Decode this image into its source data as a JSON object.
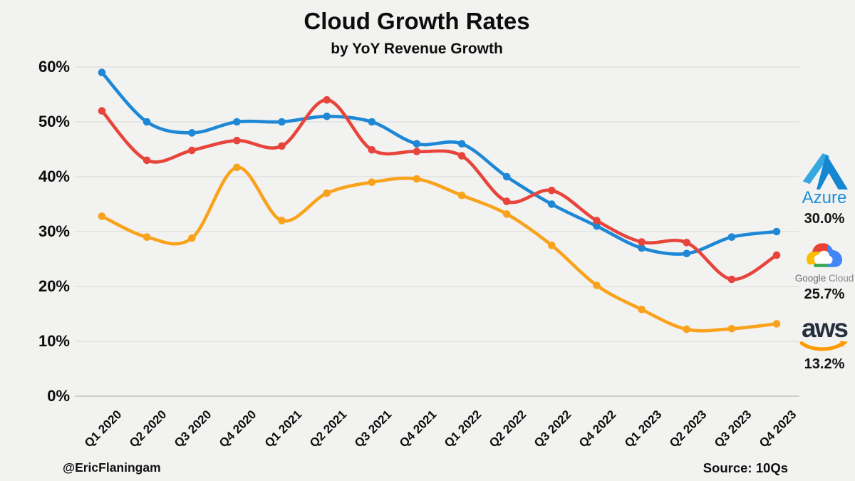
{
  "title": "Cloud Growth Rates",
  "subtitle": "by YoY Revenue Growth",
  "footer": {
    "watermark": "@EricFlaningam",
    "source": "Source: 10Qs"
  },
  "chart_data": {
    "type": "line",
    "title": "Cloud Growth Rates",
    "subtitle": "by YoY Revenue Growth",
    "categories": [
      "Q1 2020",
      "Q2 2020",
      "Q3 2020",
      "Q4 2020",
      "Q1 2021",
      "Q2 2021",
      "Q3 2021",
      "Q4 2021",
      "Q1 2022",
      "Q2 2022",
      "Q3 2022",
      "Q4 2022",
      "Q1 2023",
      "Q2 2023",
      "Q3 2023",
      "Q4 2023"
    ],
    "series": [
      {
        "name": "Azure",
        "color": "#1e88d6",
        "values": [
          59,
          50,
          48,
          50,
          50,
          51,
          50,
          46,
          46,
          40,
          35,
          31,
          27,
          26,
          29,
          30
        ]
      },
      {
        "name": "Google Cloud",
        "color": "#e7453c",
        "values": [
          52,
          43,
          44.8,
          46.6,
          45.6,
          54,
          44.9,
          44.6,
          43.8,
          35.5,
          37.5,
          32,
          28.1,
          28,
          21.3,
          25.7
        ]
      },
      {
        "name": "AWS",
        "color": "#f9a21b",
        "values": [
          32.8,
          29,
          28.8,
          41.7,
          32,
          37,
          39,
          39.6,
          36.6,
          33.2,
          27.5,
          20.2,
          15.8,
          12.2,
          12.3,
          13.2
        ]
      }
    ],
    "ylim": [
      0,
      60
    ],
    "yticks": [
      {
        "value": 60,
        "label": "60%"
      },
      {
        "value": 50,
        "label": "50%"
      },
      {
        "value": 40,
        "label": "40%"
      },
      {
        "value": 30,
        "label": "30%"
      },
      {
        "value": 20,
        "label": "20%"
      },
      {
        "value": 10,
        "label": "10%"
      },
      {
        "value": 0,
        "label": "0%"
      }
    ],
    "grid": true,
    "legend_position": "right",
    "x_label_rotation": -45
  },
  "legend": {
    "azure": {
      "brand": "Azure",
      "value": "30.0%",
      "brand_color": "#0089d6"
    },
    "google": {
      "brand_word1": "Google",
      "brand_word2": " Cloud",
      "value": "25.7%"
    },
    "aws": {
      "brand": "aws",
      "value": "13.2%",
      "navy": "#252f3e",
      "orange": "#ff9900"
    }
  }
}
